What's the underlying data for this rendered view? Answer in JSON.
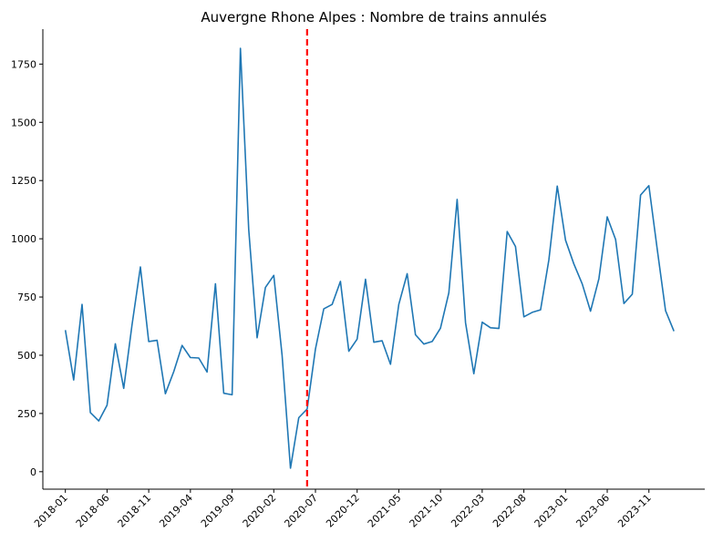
{
  "chart_data": {
    "type": "line",
    "title": "Auvergne Rhone Alpes : Nombre de trains annulés",
    "xlabel": "",
    "ylabel": "",
    "ylim": [
      -75,
      1900
    ],
    "xlim": [
      "2017-10",
      "2024-06"
    ],
    "yticks": [
      0,
      250,
      500,
      750,
      1000,
      1250,
      1500,
      1750
    ],
    "xticks": [
      "2018-01",
      "2018-06",
      "2018-11",
      "2019-04",
      "2019-09",
      "2020-02",
      "2020-07",
      "2020-12",
      "2021-05",
      "2021-10",
      "2022-03",
      "2022-08",
      "2023-01",
      "2023-06",
      "2023-11"
    ],
    "grid": false,
    "series": [
      {
        "color": "#1f77b4",
        "x": [
          "2018-01",
          "2018-02",
          "2018-03",
          "2018-04",
          "2018-05",
          "2018-06",
          "2018-07",
          "2018-08",
          "2018-09",
          "2018-10",
          "2018-11",
          "2018-12",
          "2019-01",
          "2019-02",
          "2019-03",
          "2019-04",
          "2019-05",
          "2019-06",
          "2019-07",
          "2019-08",
          "2019-09",
          "2019-10",
          "2019-11",
          "2019-12",
          "2020-01",
          "2020-02",
          "2020-03",
          "2020-04",
          "2020-05",
          "2020-06",
          "2020-07",
          "2020-08",
          "2020-09",
          "2020-10",
          "2020-11",
          "2020-12",
          "2021-01",
          "2021-02",
          "2021-03",
          "2021-04",
          "2021-05",
          "2021-06",
          "2021-07",
          "2021-08",
          "2021-09",
          "2021-10",
          "2021-11",
          "2021-12",
          "2022-01",
          "2022-02",
          "2022-03",
          "2022-04",
          "2022-05",
          "2022-06",
          "2022-07",
          "2022-08",
          "2022-09",
          "2022-10",
          "2022-11",
          "2022-12",
          "2023-01",
          "2023-02",
          "2023-03",
          "2023-04",
          "2023-05",
          "2023-06",
          "2023-07",
          "2023-08",
          "2023-09",
          "2023-10",
          "2023-11",
          "2023-12",
          "2024-01",
          "2024-02"
        ],
        "values": [
          608,
          394,
          718,
          254,
          218,
          285,
          549,
          358,
          630,
          879,
          559,
          564,
          335,
          430,
          542,
          490,
          488,
          428,
          807,
          337,
          330,
          1818,
          1040,
          575,
          791,
          843,
          500,
          15,
          232,
          269,
          527,
          699,
          718,
          817,
          517,
          569,
          826,
          556,
          562,
          461,
          718,
          850,
          588,
          548,
          559,
          616,
          768,
          1169,
          640,
          421,
          642,
          618,
          615,
          1031,
          967,
          665,
          684,
          695,
          909,
          1226,
          994,
          892,
          806,
          689,
          829,
          1094,
          997,
          722,
          762,
          1188,
          1228,
          954,
          691,
          603
        ]
      }
    ],
    "annotations": [
      {
        "type": "vline",
        "x": "2020-06",
        "color": "#ff0000",
        "style": "dashed"
      }
    ]
  }
}
